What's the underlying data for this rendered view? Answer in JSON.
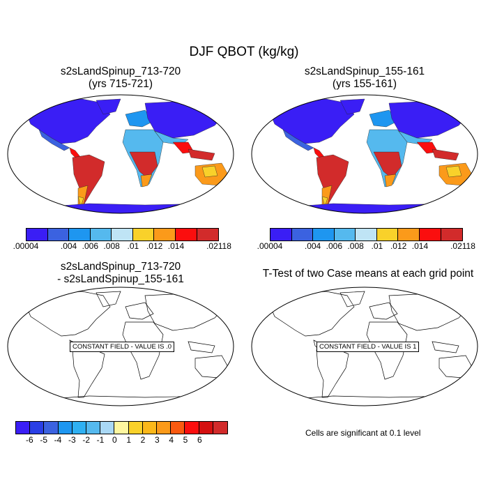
{
  "title": "DJF QBOT (kg/kg)",
  "panels": {
    "top_left": {
      "title": "s2sLandSpinup_713-720",
      "subtitle": "(yrs 715-721)"
    },
    "top_right": {
      "title": "s2sLandSpinup_155-161",
      "subtitle": "(yrs 155-161)"
    },
    "bottom_left": {
      "title": "s2sLandSpinup_713-720",
      "subtitle": "- s2sLandSpinup_155-161",
      "message": "CONSTANT FIELD - VALUE IS .0"
    },
    "bottom_right": {
      "title": "T-Test of two Case means at each grid point",
      "message": "CONSTANT FIELD - VALUE IS 1",
      "note": "Cells are significant at 0.1 level"
    }
  },
  "colorbar_main": {
    "colors": [
      "#3a1ef5",
      "#3b62e0",
      "#1e96f0",
      "#55b9ee",
      "#bfe4f5",
      "#f9d12a",
      "#fb9a1a",
      "#fb0e0e",
      "#d22b2b"
    ],
    "labels": [
      ".00004",
      "",
      ".004",
      ".006",
      ".008",
      ".01",
      ".012",
      ".014",
      "",
      ".02118"
    ]
  },
  "colorbar_diff": {
    "colors": [
      "#3a1ef5",
      "#2a3fe6",
      "#3b62e0",
      "#1e96f0",
      "#2fb0f2",
      "#55b9ee",
      "#a9d8f5",
      "#fef7a0",
      "#f9d12a",
      "#fbb81a",
      "#fb9a1a",
      "#fb5a10",
      "#fb0e0e",
      "#d41010",
      "#d22b2b"
    ],
    "labels": [
      "-6",
      "-5",
      "-4",
      "-3",
      "-2",
      "-1",
      "0",
      "1",
      "2",
      "3",
      "4",
      "5",
      "6"
    ]
  }
}
